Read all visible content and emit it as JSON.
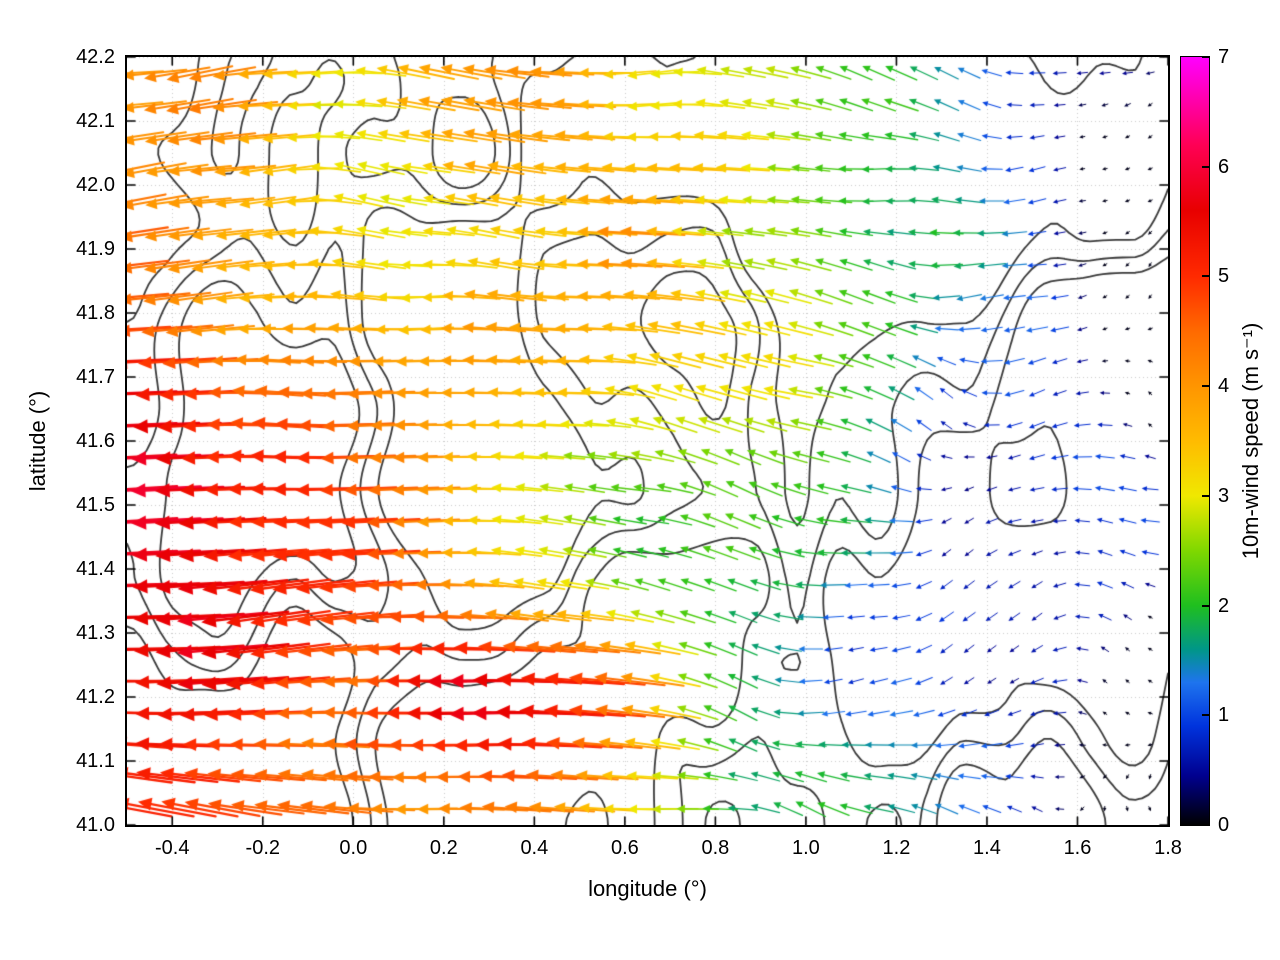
{
  "figure": {
    "background": "#ffffff",
    "frame_color": "#000000"
  },
  "chart_data": {
    "type": "quiver",
    "title": "",
    "xlabel": "longitude (°)",
    "ylabel": "latitude (°)",
    "xlim": [
      -0.5,
      1.8
    ],
    "ylim": [
      41.0,
      42.2
    ],
    "x_ticks": {
      "values": [
        -0.4,
        -0.2,
        0.0,
        0.2,
        0.4,
        0.6,
        0.8,
        1.0,
        1.2,
        1.4,
        1.6,
        1.8
      ],
      "labels": [
        "-0.4",
        "-0.2",
        "0.0",
        "0.2",
        "0.4",
        "0.6",
        "0.8",
        "1.0",
        "1.2",
        "1.4",
        "1.6",
        "1.8"
      ]
    },
    "y_ticks": {
      "values": [
        41.0,
        41.1,
        41.2,
        41.3,
        41.4,
        41.5,
        41.6,
        41.7,
        41.8,
        41.9,
        42.0,
        42.1,
        42.2
      ],
      "labels": [
        "41.0",
        "41.1",
        "41.2",
        "41.3",
        "41.4",
        "41.5",
        "41.6",
        "41.7",
        "41.8",
        "41.9",
        "42.0",
        "42.1",
        "42.2"
      ]
    },
    "grid": {
      "show": true,
      "style": "dotted",
      "color": "#c9c9c9"
    },
    "colorbar": {
      "label": "10m-wind speed (m s⁻¹)",
      "min": 0,
      "max": 7,
      "tick_values": [
        0,
        1,
        2,
        3,
        4,
        5,
        6,
        7
      ],
      "tick_labels": [
        "0",
        "1",
        "2",
        "3",
        "4",
        "5",
        "6",
        "7"
      ],
      "stops": [
        {
          "v": 0.0,
          "c": "#000000"
        },
        {
          "v": 0.45,
          "c": "#00008f"
        },
        {
          "v": 0.9,
          "c": "#0033dd"
        },
        {
          "v": 1.3,
          "c": "#1e74ee"
        },
        {
          "v": 1.6,
          "c": "#009688"
        },
        {
          "v": 2.0,
          "c": "#1fbf1f"
        },
        {
          "v": 2.5,
          "c": "#7fd800"
        },
        {
          "v": 3.0,
          "c": "#f0e800"
        },
        {
          "v": 3.5,
          "c": "#ffbb00"
        },
        {
          "v": 4.0,
          "c": "#ff9500"
        },
        {
          "v": 4.5,
          "c": "#ff6a00"
        },
        {
          "v": 5.0,
          "c": "#ff2a00"
        },
        {
          "v": 5.6,
          "c": "#e80000"
        },
        {
          "v": 6.2,
          "c": "#ff0055"
        },
        {
          "v": 6.6,
          "c": "#ff00aa"
        },
        {
          "v": 7.0,
          "c": "#ff00ff"
        }
      ]
    },
    "contours": {
      "color": "#3a3a3a",
      "line_width": 1.8,
      "levels": [
        0.46,
        0.53,
        0.6
      ],
      "noise": {
        "seed": 7,
        "sx": 2.7,
        "sy": 1.9,
        "octaves": 3
      }
    },
    "wind_field": {
      "grid": {
        "lon_start": -0.49,
        "lon_step": 0.05,
        "cols": 46,
        "lat_start": 41.025,
        "lat_step": 0.05,
        "rows": 24
      },
      "speed_model": {
        "base_at_west": 5.0,
        "gradient_per_deg": -2.05,
        "noise_amp": 2.2,
        "noise": {
          "seed": 11,
          "sx": 2.2,
          "sy": 2.2,
          "octaves": 3
        },
        "bumps": [
          {
            "lon": 0.38,
            "lat": 41.2,
            "amp": 2.6,
            "rx": 0.28,
            "ry": 0.13
          },
          {
            "lon": -0.42,
            "lat": 41.5,
            "amp": 1.6,
            "rx": 0.22,
            "ry": 0.3
          },
          {
            "lon": 1.5,
            "lat": 41.15,
            "amp": -0.9,
            "rx": 0.5,
            "ry": 0.4
          }
        ],
        "clamp": [
          0.08,
          7
        ]
      },
      "direction_model": {
        "base_deg": 180,
        "noise": {
          "seed": 23,
          "sx": 3.0,
          "sy": 3.0,
          "octaves": 2
        },
        "dev_min_deg": 10,
        "dev_max_extra_deg": 150,
        "dev_decay": 0.75
      }
    }
  }
}
